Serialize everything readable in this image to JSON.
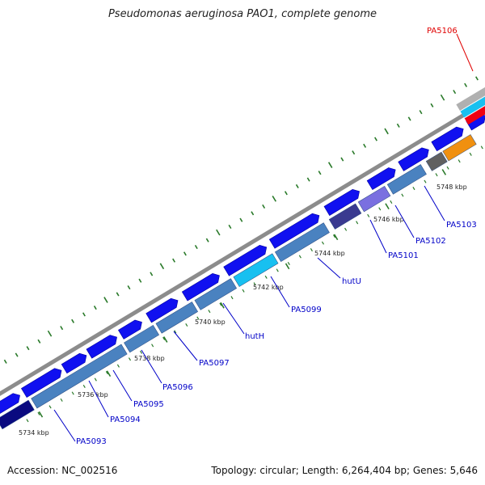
{
  "title": "Pseudomonas aeruginosa PAO1, complete genome",
  "footer": {
    "accession": "Accession: NC_002516",
    "stats": "Topology: circular; Length: 6,264,404 bp; Genes: 5,646"
  },
  "colors": {
    "backbone": "#8c8c8c",
    "tick": "#2a7a2a",
    "gene_forward": "#1010f0",
    "gene_reverse": "#4a82c0",
    "label": "#0000c8",
    "highlight_label": "#e00000"
  },
  "scale_ticks": [
    "5734 kbp",
    "5736 kbp",
    "5738 kbp",
    "5740 kbp",
    "5742 kbp",
    "5744 kbp",
    "5746 kbp",
    "5748 kbp"
  ],
  "gene_labels": [
    {
      "text": "PA5093",
      "highlight": false
    },
    {
      "text": "PA5094",
      "highlight": false
    },
    {
      "text": "PA5095",
      "highlight": false
    },
    {
      "text": "PA5096",
      "highlight": false
    },
    {
      "text": "PA5097",
      "highlight": false
    },
    {
      "text": "hutH",
      "highlight": false
    },
    {
      "text": "PA5099",
      "highlight": false
    },
    {
      "text": "hutU",
      "highlight": false
    },
    {
      "text": "PA5101",
      "highlight": false
    },
    {
      "text": "PA5102",
      "highlight": false
    },
    {
      "text": "PA5103",
      "highlight": false
    },
    {
      "text": "PA5106",
      "highlight": true
    }
  ],
  "features": {
    "outer": [
      {
        "kind": "arrow",
        "color": "#1010f0"
      },
      {
        "kind": "arrow",
        "color": "#1010f0"
      },
      {
        "kind": "arrow",
        "color": "#1010f0"
      },
      {
        "kind": "arrow",
        "color": "#1010f0"
      },
      {
        "kind": "arrow",
        "color": "#1010f0"
      },
      {
        "kind": "arrow",
        "color": "#1010f0"
      },
      {
        "kind": "arrow",
        "color": "#1010f0"
      },
      {
        "kind": "arrow",
        "color": "#1010f0"
      },
      {
        "kind": "arrow",
        "color": "#1010f0"
      },
      {
        "kind": "arrow",
        "color": "#1010f0"
      },
      {
        "kind": "arrow",
        "color": "#1010f0"
      },
      {
        "kind": "arrow",
        "color": "#1010f0"
      },
      {
        "kind": "arrow",
        "color": "#1010f0"
      },
      {
        "kind": "arrow",
        "color": "#1010f0"
      }
    ],
    "inner": [
      {
        "kind": "block",
        "color": "#0a0a80"
      },
      {
        "kind": "block",
        "color": "#4a82c0"
      },
      {
        "kind": "block",
        "color": "#4a82c0"
      },
      {
        "kind": "block",
        "color": "#4a82c0"
      },
      {
        "kind": "block",
        "color": "#4a82c0"
      },
      {
        "kind": "block",
        "color": "#18c0f0"
      },
      {
        "kind": "block",
        "color": "#4a82c0"
      },
      {
        "kind": "block",
        "color": "#3a3a90"
      },
      {
        "kind": "block",
        "color": "#7a70e0"
      },
      {
        "kind": "block",
        "color": "#4a82c0"
      },
      {
        "kind": "block",
        "color": "#606060"
      },
      {
        "kind": "block",
        "color": "#f09010"
      }
    ],
    "corner": [
      {
        "kind": "block",
        "color": "#b0b0b0"
      },
      {
        "kind": "block",
        "color": "#18c0f0"
      },
      {
        "kind": "block",
        "color": "#f00010"
      }
    ]
  }
}
